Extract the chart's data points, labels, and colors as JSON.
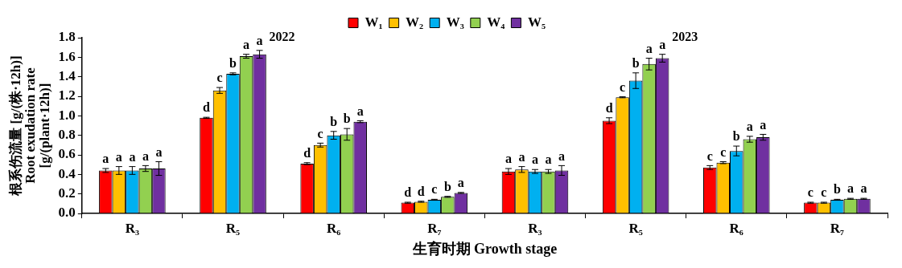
{
  "chart_data": {
    "type": "bar",
    "xlabel": "生育时期 Growth stage",
    "ylabel": "根系伤流量 [g/(株·12h)]\nRoot exudation rate\n[g/(plant·12h)]",
    "categories": [
      "R₃",
      "R₅",
      "R₆",
      "R₇",
      "R₃",
      "R₅",
      "R₆",
      "R₇"
    ],
    "series": [
      {
        "name": "W₁",
        "color": "#ff0000",
        "values": [
          0.44,
          0.98,
          0.51,
          0.11,
          0.43,
          0.95,
          0.47,
          0.11
        ],
        "errors": [
          0.02,
          0.005,
          0.01,
          0.005,
          0.03,
          0.03,
          0.02,
          0.005
        ],
        "value_labels": [
          "a",
          "d",
          "d",
          "d",
          "a",
          "d",
          "c",
          "c"
        ]
      },
      {
        "name": "W₂",
        "color": "#ffc000",
        "values": [
          0.44,
          1.26,
          0.7,
          0.12,
          0.45,
          1.19,
          0.52,
          0.11
        ],
        "errors": [
          0.04,
          0.03,
          0.02,
          0.005,
          0.03,
          0.005,
          0.01,
          0.005
        ],
        "value_labels": [
          "a",
          "c",
          "c",
          "d",
          "a",
          "c",
          "c",
          "c"
        ]
      },
      {
        "name": "W₃",
        "color": "#00b0f0",
        "values": [
          0.44,
          1.43,
          0.8,
          0.14,
          0.43,
          1.36,
          0.64,
          0.14
        ],
        "errors": [
          0.04,
          0.01,
          0.04,
          0.005,
          0.02,
          0.08,
          0.05,
          0.005
        ],
        "value_labels": [
          "a",
          "b",
          "b",
          "c",
          "a",
          "b",
          "b",
          "b"
        ]
      },
      {
        "name": "W₄",
        "color": "#92d050",
        "values": [
          0.46,
          1.61,
          0.81,
          0.17,
          0.43,
          1.53,
          0.76,
          0.15
        ],
        "errors": [
          0.03,
          0.02,
          0.06,
          0.005,
          0.02,
          0.06,
          0.03,
          0.005
        ],
        "value_labels": [
          "a",
          "a",
          "b",
          "b",
          "a",
          "a",
          "a",
          "a"
        ]
      },
      {
        "name": "W₅",
        "color": "#7030a0",
        "values": [
          0.46,
          1.63,
          0.94,
          0.21,
          0.44,
          1.59,
          0.78,
          0.15
        ],
        "errors": [
          0.07,
          0.04,
          0.01,
          0.005,
          0.05,
          0.04,
          0.03,
          0.005
        ],
        "value_labels": [
          "a",
          "a",
          "a",
          "a",
          "a",
          "a",
          "a",
          "a"
        ]
      }
    ],
    "annotations": [
      "2022",
      "2023"
    ],
    "ylim": [
      0,
      1.8
    ],
    "yticks": [
      {
        "value": 0,
        "label": "0.0"
      },
      0.2,
      0.4,
      0.6,
      0.8,
      {
        "value": 1,
        "label": "1.0"
      },
      1.2,
      1.4,
      1.6,
      1.8
    ],
    "grid": false,
    "legend": "top"
  }
}
